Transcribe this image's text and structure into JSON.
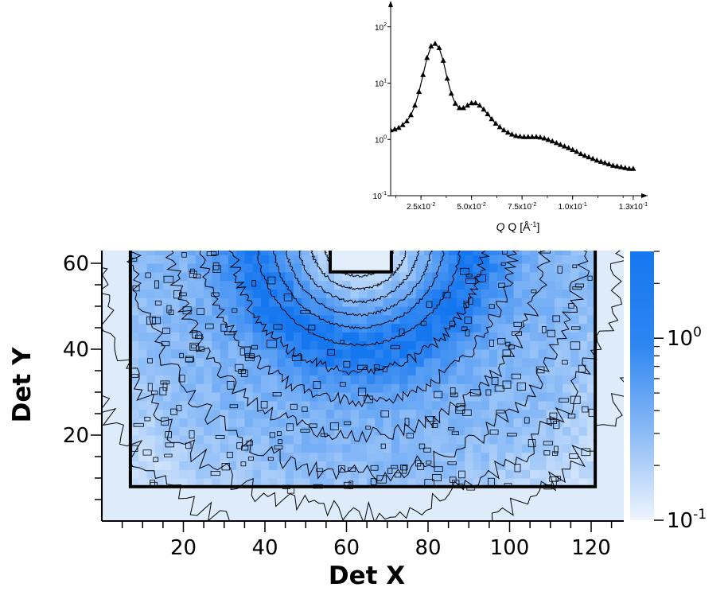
{
  "chart_data": [
    {
      "type": "line",
      "panel": "inset",
      "xlabel": "Q [Å",
      "xlabel_sup": "-1",
      "xlabel_close": "]",
      "ylabel": "",
      "x_scale": "linear",
      "y_scale": "log",
      "xlim": [
        0.01,
        0.132
      ],
      "ylim": [
        0.1,
        300
      ],
      "x_ticks": [
        {
          "value": 0.025,
          "mantissa": "2.5x10",
          "exp": "-2"
        },
        {
          "value": 0.05,
          "mantissa": "5.0x10",
          "exp": "-2"
        },
        {
          "value": 0.075,
          "mantissa": "7.5x10",
          "exp": "-2"
        },
        {
          "value": 0.1,
          "mantissa": "1.0x10",
          "exp": "-1"
        },
        {
          "value": 0.13,
          "mantissa": "1.3x10",
          "exp": "-1"
        }
      ],
      "y_ticks": [
        {
          "value": 0.1,
          "base": "10",
          "exp": "-1"
        },
        {
          "value": 1,
          "base": "10",
          "exp": "0"
        },
        {
          "value": 10,
          "base": "10",
          "exp": "1"
        },
        {
          "value": 100,
          "base": "10",
          "exp": "2"
        }
      ],
      "marker": "triangle",
      "line_color": "#000000",
      "x": [
        0.01,
        0.012,
        0.014,
        0.016,
        0.018,
        0.02,
        0.022,
        0.024,
        0.026,
        0.028,
        0.03,
        0.032,
        0.034,
        0.036,
        0.038,
        0.04,
        0.042,
        0.044,
        0.046,
        0.048,
        0.05,
        0.052,
        0.054,
        0.056,
        0.058,
        0.06,
        0.062,
        0.064,
        0.066,
        0.068,
        0.07,
        0.072,
        0.074,
        0.076,
        0.078,
        0.08,
        0.082,
        0.084,
        0.086,
        0.088,
        0.09,
        0.092,
        0.094,
        0.096,
        0.098,
        0.1,
        0.102,
        0.104,
        0.106,
        0.108,
        0.11,
        0.112,
        0.114,
        0.116,
        0.118,
        0.12,
        0.122,
        0.124,
        0.126,
        0.128,
        0.13
      ],
      "y": [
        1.45,
        1.5,
        1.6,
        1.8,
        2.1,
        2.7,
        4.0,
        7.0,
        14,
        28,
        45,
        50,
        42,
        25,
        12,
        6.5,
        4.3,
        3.6,
        3.6,
        4.0,
        4.4,
        4.4,
        4.0,
        3.4,
        2.8,
        2.3,
        1.9,
        1.65,
        1.45,
        1.32,
        1.22,
        1.15,
        1.12,
        1.1,
        1.1,
        1.1,
        1.1,
        1.08,
        1.04,
        0.98,
        0.92,
        0.86,
        0.8,
        0.75,
        0.7,
        0.65,
        0.6,
        0.55,
        0.51,
        0.48,
        0.45,
        0.42,
        0.4,
        0.38,
        0.36,
        0.34,
        0.33,
        0.32,
        0.31,
        0.3,
        0.3
      ]
    },
    {
      "type": "heatmap",
      "panel": "main",
      "xlabel": "Det X",
      "ylabel": "Det Y",
      "xlim": [
        0,
        128
      ],
      "ylim": [
        0,
        64
      ],
      "x_ticks": [
        20,
        40,
        60,
        80,
        100,
        120
      ],
      "y_ticks": [
        20,
        40,
        60
      ],
      "beam_center": [
        63,
        66
      ],
      "beam_stop": {
        "x": [
          56,
          71
        ],
        "y": [
          58,
          64
        ]
      },
      "active_region": {
        "x": [
          7,
          121
        ],
        "y": [
          8,
          64
        ]
      },
      "colorscale": {
        "low": "#edf4fd",
        "high": "#1577f0",
        "scale": "log",
        "range": [
          0.1,
          3
        ]
      },
      "colorbar_ticks": [
        {
          "value": 1,
          "base": "10",
          "exp": "0"
        },
        {
          "value": 0.1,
          "base": "10",
          "exp": "-1"
        }
      ],
      "contours": true
    }
  ]
}
